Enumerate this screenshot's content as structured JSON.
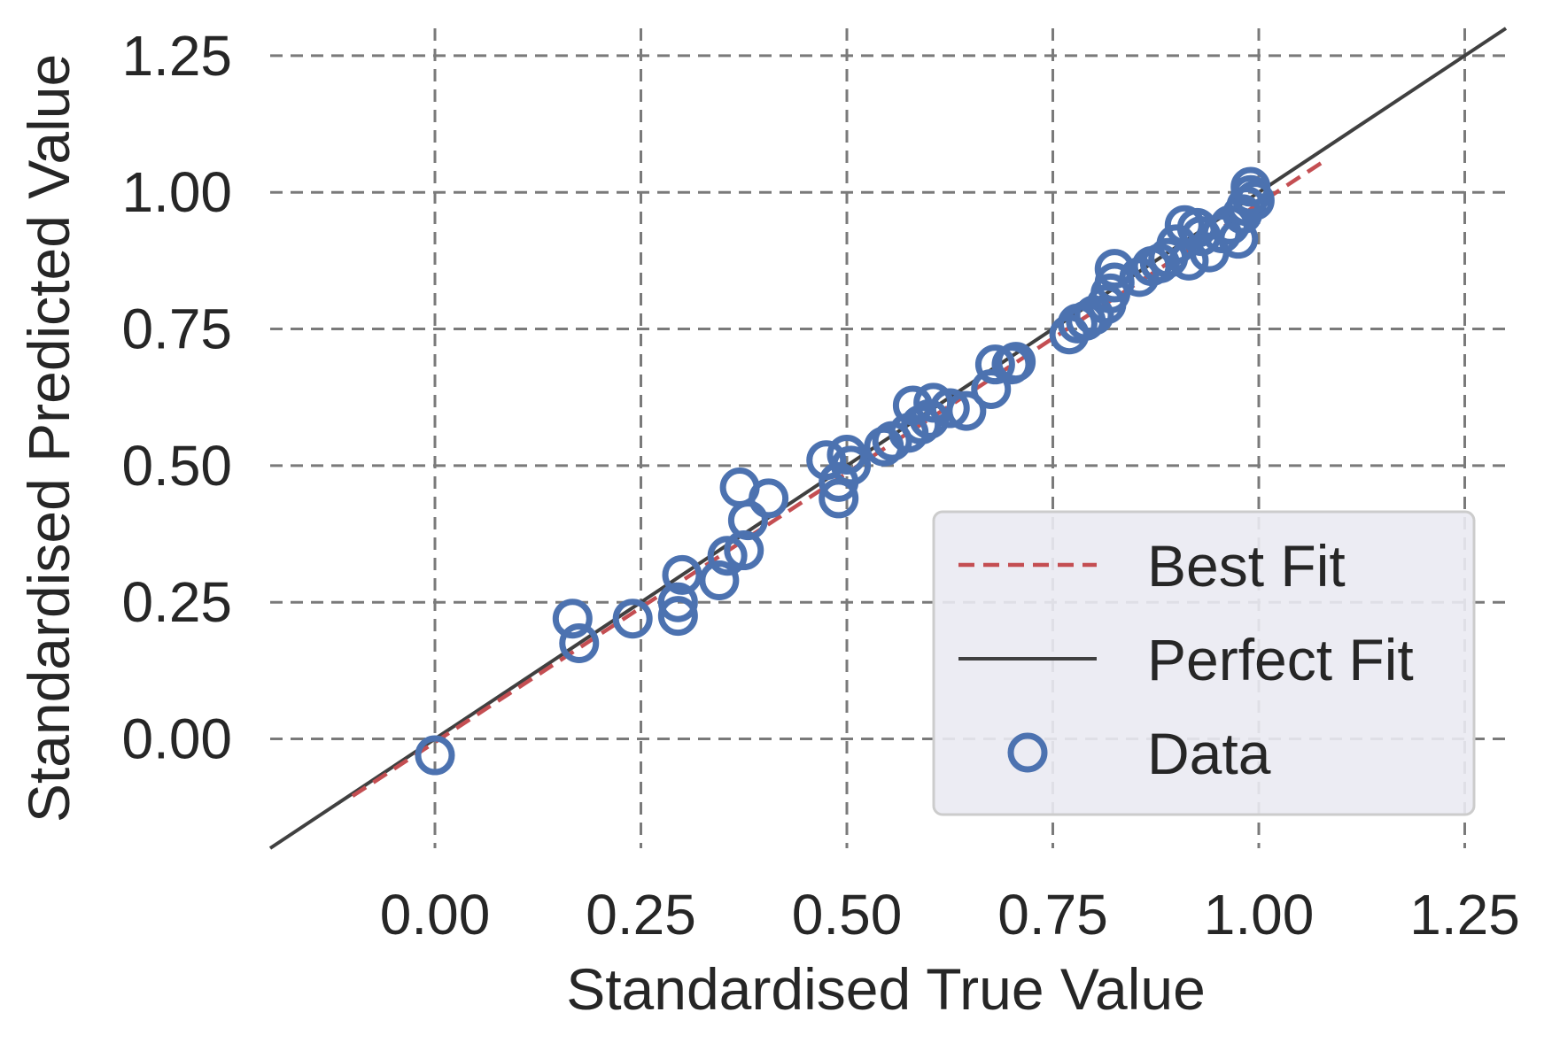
{
  "chart_data": {
    "type": "scatter",
    "xlabel": "Standardised True Value",
    "ylabel": "Standardised Predicted Value",
    "xlim": [
      -0.2,
      1.3
    ],
    "ylim": [
      -0.2,
      1.3
    ],
    "x_ticks": [
      "0.00",
      "0.25",
      "0.50",
      "0.75",
      "1.00",
      "1.25"
    ],
    "y_ticks": [
      "0.00",
      "0.25",
      "0.50",
      "0.75",
      "1.00",
      "1.25"
    ],
    "grid": true,
    "legend_position": "lower-right",
    "best_fit": {
      "name": "Best Fit",
      "slope": 0.985,
      "intercept": -0.006,
      "x_range": [
        -0.1,
        1.08
      ],
      "color": "#c44e52"
    },
    "perfect_fit": {
      "name": "Perfect Fit",
      "slope": 1,
      "intercept": 0,
      "color": "#404040"
    },
    "series": [
      {
        "name": "Data",
        "marker": "open-circle",
        "color": "#4c72b0",
        "points": [
          [
            0.0,
            -0.03
          ],
          [
            0.167,
            0.22
          ],
          [
            0.175,
            0.175
          ],
          [
            0.24,
            0.22
          ],
          [
            0.295,
            0.225
          ],
          [
            0.295,
            0.25
          ],
          [
            0.3,
            0.3
          ],
          [
            0.345,
            0.29
          ],
          [
            0.355,
            0.335
          ],
          [
            0.375,
            0.345
          ],
          [
            0.37,
            0.46
          ],
          [
            0.38,
            0.4
          ],
          [
            0.405,
            0.44
          ],
          [
            0.475,
            0.51
          ],
          [
            0.49,
            0.44
          ],
          [
            0.49,
            0.47
          ],
          [
            0.5,
            0.52
          ],
          [
            0.505,
            0.5
          ],
          [
            0.545,
            0.535
          ],
          [
            0.555,
            0.545
          ],
          [
            0.575,
            0.56
          ],
          [
            0.58,
            0.61
          ],
          [
            0.59,
            0.575
          ],
          [
            0.6,
            0.585
          ],
          [
            0.605,
            0.615
          ],
          [
            0.625,
            0.605
          ],
          [
            0.645,
            0.6
          ],
          [
            0.675,
            0.64
          ],
          [
            0.68,
            0.685
          ],
          [
            0.7,
            0.685
          ],
          [
            0.705,
            0.69
          ],
          [
            0.77,
            0.74
          ],
          [
            0.78,
            0.76
          ],
          [
            0.79,
            0.765
          ],
          [
            0.8,
            0.775
          ],
          [
            0.815,
            0.795
          ],
          [
            0.82,
            0.815
          ],
          [
            0.825,
            0.835
          ],
          [
            0.825,
            0.86
          ],
          [
            0.855,
            0.845
          ],
          [
            0.87,
            0.865
          ],
          [
            0.88,
            0.87
          ],
          [
            0.89,
            0.88
          ],
          [
            0.9,
            0.905
          ],
          [
            0.91,
            0.94
          ],
          [
            0.915,
            0.875
          ],
          [
            0.925,
            0.935
          ],
          [
            0.93,
            0.92
          ],
          [
            0.94,
            0.89
          ],
          [
            0.955,
            0.925
          ],
          [
            0.965,
            0.94
          ],
          [
            0.975,
            0.915
          ],
          [
            0.98,
            0.96
          ],
          [
            0.985,
            0.975
          ],
          [
            0.99,
            0.995
          ],
          [
            0.99,
            1.01
          ],
          [
            0.995,
            0.985
          ]
        ]
      }
    ]
  }
}
